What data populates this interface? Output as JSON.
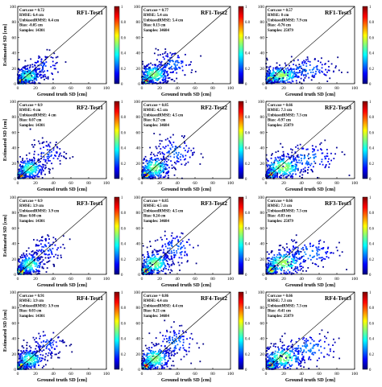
{
  "figure": {
    "ylabel": "Estimated SD [cm]",
    "xlabel": "Ground truth SD [cm]",
    "colorbar_ticks": [
      "0",
      "0.2",
      "0.4",
      "0.6",
      "0.8",
      "1"
    ],
    "colormap": [
      "#00007f",
      "#0000ff",
      "#007fff",
      "#00ffff",
      "#7fff7f",
      "#ffff00",
      "#ff7f00",
      "#ff0000",
      "#7f0000"
    ]
  },
  "chart_data": [
    {
      "type": "scatter",
      "title": "RF1-Test1",
      "xlabel": "Ground truth SD [cm]",
      "ylabel": "Estimated SD [cm]",
      "xlim": [
        0,
        100
      ],
      "ylim": [
        0,
        100
      ],
      "x_ticks": [
        0,
        20,
        40,
        60,
        80,
        100
      ],
      "y_ticks": [
        0,
        20,
        40,
        60,
        80,
        100
      ],
      "colorbar_range": [
        0,
        1
      ],
      "stats": [
        "Corr.coe = 0.72",
        "RMSE: 6.4 cm",
        "UnbiasedRMSE: 6.4 cm",
        "Bias: -0.05 cm",
        "Samples: 14301"
      ],
      "clusters": [
        {
          "x": 4,
          "y": 4,
          "sx": 3,
          "sy": 3,
          "n": 200
        },
        {
          "x": 12,
          "y": 10,
          "sx": 8,
          "sy": 6,
          "n": 220
        },
        {
          "x": 30,
          "y": 22,
          "sx": 10,
          "sy": 9,
          "n": 90
        }
      ]
    },
    {
      "type": "scatter",
      "title": "RF1-Test2",
      "xlabel": "Ground truth SD [cm]",
      "ylabel": "Estimated SD [cm]",
      "xlim": [
        0,
        100
      ],
      "ylim": [
        0,
        100
      ],
      "x_ticks": [
        0,
        20,
        40,
        60,
        80,
        100
      ],
      "y_ticks": [
        0,
        20,
        40,
        60,
        80,
        100
      ],
      "colorbar_range": [
        0,
        1
      ],
      "stats": [
        "Corr.coe = 0.77",
        "RMSE: 5.4 cm",
        "UnbiasedRMSE: 5.4 cm",
        "Bias: 0.13 cm",
        "Samples: 34684"
      ],
      "clusters": [
        {
          "x": 5,
          "y": 5,
          "sx": 3,
          "sy": 3,
          "n": 220
        },
        {
          "x": 14,
          "y": 12,
          "sx": 9,
          "sy": 7,
          "n": 240
        },
        {
          "x": 35,
          "y": 25,
          "sx": 12,
          "sy": 9,
          "n": 110
        }
      ]
    },
    {
      "type": "scatter",
      "title": "RF1-Test3",
      "xlabel": "Ground truth SD [cm]",
      "ylabel": "Estimated SD [cm]",
      "xlim": [
        0,
        100
      ],
      "ylim": [
        0,
        100
      ],
      "x_ticks": [
        0,
        20,
        40,
        60,
        80,
        100
      ],
      "y_ticks": [
        0,
        20,
        40,
        60,
        80,
        100
      ],
      "colorbar_range": [
        0,
        1
      ],
      "stats": [
        "Corr.coe = 0.57",
        "RMSE: 8 cm",
        "UnbiasedRMSE: 7.9 cm",
        "Bias: -0.76 cm",
        "Samples: 25879"
      ],
      "clusters": [
        {
          "x": 5,
          "y": 6,
          "sx": 3,
          "sy": 3,
          "n": 200
        },
        {
          "x": 18,
          "y": 11,
          "sx": 12,
          "sy": 6,
          "n": 250
        },
        {
          "x": 45,
          "y": 18,
          "sx": 18,
          "sy": 8,
          "n": 120
        }
      ]
    },
    {
      "type": "scatter",
      "title": "RF2-Test1",
      "xlabel": "Ground truth SD [cm]",
      "ylabel": "Estimated SD [cm]",
      "xlim": [
        0,
        100
      ],
      "ylim": [
        0,
        100
      ],
      "x_ticks": [
        0,
        20,
        40,
        60,
        80,
        100
      ],
      "y_ticks": [
        0,
        20,
        40,
        60,
        80,
        100
      ],
      "colorbar_range": [
        0,
        1
      ],
      "stats": [
        "Corr.coe = 0.9",
        "RMSE: 4 cm",
        "UnbiasedRMSE: 4 cm",
        "Bias: 0.07 cm",
        "Samples: 14301"
      ],
      "clusters": [
        {
          "x": 4,
          "y": 4,
          "sx": 3,
          "sy": 3,
          "n": 200
        },
        {
          "x": 14,
          "y": 13,
          "sx": 8,
          "sy": 7,
          "n": 220
        },
        {
          "x": 34,
          "y": 32,
          "sx": 10,
          "sy": 9,
          "n": 90
        }
      ]
    },
    {
      "type": "scatter",
      "title": "RF2-Test2",
      "xlabel": "Ground truth SD [cm]",
      "ylabel": "Estimated SD [cm]",
      "xlim": [
        0,
        100
      ],
      "ylim": [
        0,
        100
      ],
      "x_ticks": [
        0,
        20,
        40,
        60,
        80,
        100
      ],
      "y_ticks": [
        0,
        20,
        40,
        60,
        80,
        100
      ],
      "colorbar_range": [
        0,
        1
      ],
      "stats": [
        "Corr.coe = 0.85",
        "RMSE: 4.5 cm",
        "UnbiasedRMSE: 4.5 cm",
        "Bias: 0.27 cm",
        "Samples: 34684"
      ],
      "clusters": [
        {
          "x": 5,
          "y": 5,
          "sx": 3,
          "sy": 3,
          "n": 220
        },
        {
          "x": 15,
          "y": 14,
          "sx": 9,
          "sy": 8,
          "n": 240
        },
        {
          "x": 38,
          "y": 34,
          "sx": 12,
          "sy": 11,
          "n": 110
        }
      ]
    },
    {
      "type": "scatter",
      "title": "RF2-Test3",
      "xlabel": "Ground truth SD [cm]",
      "ylabel": "Estimated SD [cm]",
      "xlim": [
        0,
        100
      ],
      "ylim": [
        0,
        100
      ],
      "x_ticks": [
        0,
        20,
        40,
        60,
        80,
        100
      ],
      "y_ticks": [
        0,
        20,
        40,
        60,
        80,
        100
      ],
      "colorbar_range": [
        0,
        1
      ],
      "stats": [
        "Corr.coe = 0.66",
        "RMSE: 7.3 cm",
        "UnbiasedRMSE: 7.3 cm",
        "Bias: -0.97 cm",
        "Samples: 25879"
      ],
      "clusters": [
        {
          "x": 6,
          "y": 6,
          "sx": 3,
          "sy": 3,
          "n": 200
        },
        {
          "x": 20,
          "y": 15,
          "sx": 12,
          "sy": 8,
          "n": 250
        },
        {
          "x": 48,
          "y": 26,
          "sx": 18,
          "sy": 10,
          "n": 120
        }
      ]
    },
    {
      "type": "scatter",
      "title": "RF3-Test1",
      "xlabel": "Ground truth SD [cm]",
      "ylabel": "Estimated SD [cm]",
      "xlim": [
        0,
        100
      ],
      "ylim": [
        0,
        100
      ],
      "x_ticks": [
        0,
        20,
        40,
        60,
        80,
        100
      ],
      "y_ticks": [
        0,
        20,
        40,
        60,
        80,
        100
      ],
      "colorbar_range": [
        0,
        1
      ],
      "stats": [
        "Corr.coe = 0.9",
        "RMSE: 3.9 cm",
        "UnbiasedRMSE: 3.9 cm",
        "Bias: 0.08 cm",
        "Samples: 14301"
      ],
      "clusters": [
        {
          "x": 4,
          "y": 4,
          "sx": 3,
          "sy": 3,
          "n": 200
        },
        {
          "x": 14,
          "y": 13,
          "sx": 8,
          "sy": 7,
          "n": 220
        },
        {
          "x": 34,
          "y": 33,
          "sx": 10,
          "sy": 9,
          "n": 90
        }
      ]
    },
    {
      "type": "scatter",
      "title": "RF3-Test2",
      "xlabel": "Ground truth SD [cm]",
      "ylabel": "Estimated SD [cm]",
      "xlim": [
        0,
        100
      ],
      "ylim": [
        0,
        100
      ],
      "x_ticks": [
        0,
        20,
        40,
        60,
        80,
        100
      ],
      "y_ticks": [
        0,
        20,
        40,
        60,
        80,
        100
      ],
      "colorbar_range": [
        0,
        1
      ],
      "stats": [
        "Corr.coe = 0.85",
        "RMSE: 4.5 cm",
        "UnbiasedRMSE: 4.5 cm",
        "Bias: 0.24 cm",
        "Samples: 34684"
      ],
      "clusters": [
        {
          "x": 5,
          "y": 5,
          "sx": 3,
          "sy": 3,
          "n": 220
        },
        {
          "x": 15,
          "y": 14,
          "sx": 9,
          "sy": 8,
          "n": 240
        },
        {
          "x": 38,
          "y": 34,
          "sx": 12,
          "sy": 11,
          "n": 110
        }
      ]
    },
    {
      "type": "scatter",
      "title": "RF3-Test3",
      "xlabel": "Ground truth SD [cm]",
      "ylabel": "Estimated SD [cm]",
      "xlim": [
        0,
        100
      ],
      "ylim": [
        0,
        100
      ],
      "x_ticks": [
        0,
        20,
        40,
        60,
        80,
        100
      ],
      "y_ticks": [
        0,
        20,
        40,
        60,
        80,
        100
      ],
      "colorbar_range": [
        0,
        1
      ],
      "stats": [
        "Corr.coe = 0.66",
        "RMSE: 7.3 cm",
        "UnbiasedRMSE: 7.3 cm",
        "Bias: -0.83 cm",
        "Samples: 25879"
      ],
      "clusters": [
        {
          "x": 6,
          "y": 6,
          "sx": 3,
          "sy": 3,
          "n": 200
        },
        {
          "x": 20,
          "y": 15,
          "sx": 12,
          "sy": 8,
          "n": 250
        },
        {
          "x": 48,
          "y": 27,
          "sx": 18,
          "sy": 10,
          "n": 120
        }
      ]
    },
    {
      "type": "scatter",
      "title": "RF4-Test1",
      "xlabel": "Ground truth SD [cm]",
      "ylabel": "Estimated SD [cm]",
      "xlim": [
        0,
        100
      ],
      "ylim": [
        0,
        100
      ],
      "x_ticks": [
        0,
        20,
        40,
        60,
        80,
        100
      ],
      "y_ticks": [
        0,
        20,
        40,
        60,
        80,
        100
      ],
      "colorbar_range": [
        0,
        1
      ],
      "stats": [
        "Corr.coe = 0.91",
        "RMSE: 3.9 cm",
        "UnbiasedRMSE: 3.9 cm",
        "Bias: 0.03 cm",
        "Samples: 14301"
      ],
      "clusters": [
        {
          "x": 4,
          "y": 4,
          "sx": 3,
          "sy": 3,
          "n": 200
        },
        {
          "x": 14,
          "y": 13,
          "sx": 8,
          "sy": 7,
          "n": 220
        },
        {
          "x": 34,
          "y": 33,
          "sx": 10,
          "sy": 9,
          "n": 90
        }
      ]
    },
    {
      "type": "scatter",
      "title": "RF4-Test2",
      "xlabel": "Ground truth SD [cm]",
      "ylabel": "Estimated SD [cm]",
      "xlim": [
        0,
        100
      ],
      "ylim": [
        0,
        100
      ],
      "x_ticks": [
        0,
        20,
        40,
        60,
        80,
        100
      ],
      "y_ticks": [
        0,
        20,
        40,
        60,
        80,
        100
      ],
      "colorbar_range": [
        0,
        1
      ],
      "stats": [
        "Corr.coe = 0.86",
        "RMSE: 4.4 cm",
        "UnbiasedRMSE: 4.4 cm",
        "Bias: 0.21 cm",
        "Samples: 34684"
      ],
      "clusters": [
        {
          "x": 5,
          "y": 5,
          "sx": 3,
          "sy": 3,
          "n": 220
        },
        {
          "x": 15,
          "y": 14,
          "sx": 9,
          "sy": 8,
          "n": 240
        },
        {
          "x": 38,
          "y": 35,
          "sx": 12,
          "sy": 11,
          "n": 110
        }
      ]
    },
    {
      "type": "scatter",
      "title": "RF4-Test3",
      "xlabel": "Ground truth SD [cm]",
      "ylabel": "Estimated SD [cm]",
      "xlim": [
        0,
        100
      ],
      "ylim": [
        0,
        100
      ],
      "x_ticks": [
        0,
        20,
        40,
        60,
        80,
        100
      ],
      "y_ticks": [
        0,
        20,
        40,
        60,
        80,
        100
      ],
      "colorbar_range": [
        0,
        1
      ],
      "stats": [
        "Corr.coe = 0.66",
        "RMSE: 7.3 cm",
        "UnbiasedRMSE: 7.3 cm",
        "Bias: -0.41 cm",
        "Samples: 25879"
      ],
      "clusters": [
        {
          "x": 6,
          "y": 6,
          "sx": 3,
          "sy": 3,
          "n": 200
        },
        {
          "x": 20,
          "y": 15,
          "sx": 12,
          "sy": 8,
          "n": 250
        },
        {
          "x": 48,
          "y": 27,
          "sx": 18,
          "sy": 10,
          "n": 120
        }
      ]
    }
  ]
}
